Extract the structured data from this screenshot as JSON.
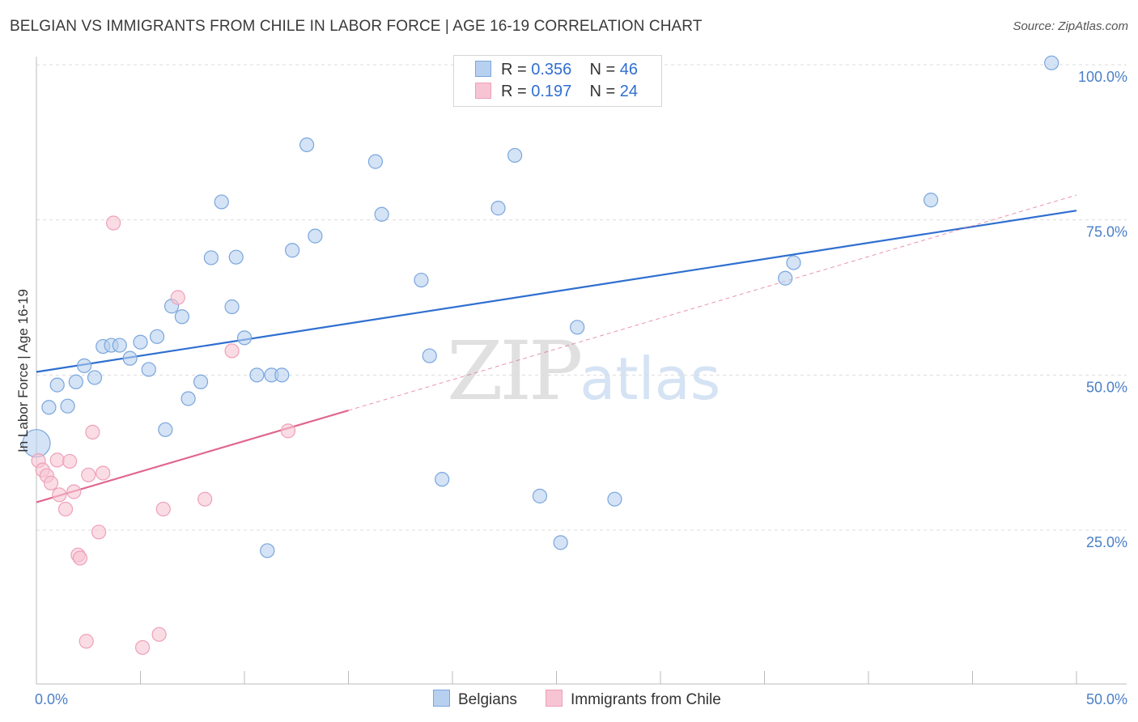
{
  "title": "BELGIAN VS IMMIGRANTS FROM CHILE IN LABOR FORCE | AGE 16-19 CORRELATION CHART",
  "source": "Source: ZipAtlas.com",
  "legend": {
    "rows": [
      {
        "r_label": "R =",
        "r_value": "0.356",
        "n_label": "N =",
        "n_value": "46"
      },
      {
        "r_label": "R =",
        "r_value": " 0.197",
        "n_label": "N =",
        "n_value": "24"
      }
    ]
  },
  "bottom_legend": {
    "series1": "Belgians",
    "series2": "Immigrants from Chile"
  },
  "watermark": {
    "zip": "ZIP",
    "atlas": "atlas"
  },
  "colors": {
    "blue_fill": "#b7d0ef",
    "blue_stroke": "#7aa6dd",
    "blue_line": "#2f6fd0",
    "pink_fill": "#f7c4d3",
    "pink_stroke": "#eea0b8",
    "pink_line": "#e0678f",
    "grid": "#dcdcdc",
    "axis_text": "#4a7fc9"
  },
  "chart_data": {
    "type": "scatter",
    "title": "BELGIAN VS IMMIGRANTS FROM CHILE IN LABOR FORCE | AGE 16-19 CORRELATION CHART",
    "xlabel": "",
    "ylabel": "In Labor Force | Age 16-19",
    "xlim": [
      0,
      50
    ],
    "ylim": [
      0,
      102
    ],
    "x_tick_labels": [
      {
        "value": 0,
        "label": "0.0%"
      },
      {
        "value": 50,
        "label": "50.0%"
      }
    ],
    "y_tick_labels": [
      {
        "value": 25,
        "label": "25.0%"
      },
      {
        "value": 50,
        "label": "50.0%"
      },
      {
        "value": 75,
        "label": "75.0%"
      },
      {
        "value": 100,
        "label": "100.0%"
      }
    ],
    "series": [
      {
        "name": "Belgians",
        "color": "#b7d0ef",
        "points": [
          [
            0.0,
            39.0,
            "big"
          ],
          [
            0.6,
            44.8
          ],
          [
            1.0,
            48.4
          ],
          [
            1.5,
            45.0
          ],
          [
            1.9,
            48.9
          ],
          [
            2.3,
            51.5
          ],
          [
            2.8,
            49.6
          ],
          [
            3.2,
            54.6
          ],
          [
            3.6,
            54.8
          ],
          [
            4.0,
            54.8
          ],
          [
            4.5,
            52.7
          ],
          [
            5.0,
            55.3
          ],
          [
            5.4,
            50.9
          ],
          [
            5.8,
            56.2
          ],
          [
            6.2,
            41.2
          ],
          [
            6.5,
            61.1
          ],
          [
            7.0,
            59.4
          ],
          [
            7.3,
            46.2
          ],
          [
            7.9,
            48.9
          ],
          [
            8.4,
            68.9
          ],
          [
            8.9,
            77.9
          ],
          [
            9.4,
            61.0
          ],
          [
            9.6,
            69.0
          ],
          [
            10.0,
            56.0
          ],
          [
            10.6,
            50.0
          ],
          [
            11.1,
            21.7
          ],
          [
            11.3,
            50.0
          ],
          [
            11.8,
            50.0
          ],
          [
            12.3,
            70.1
          ],
          [
            13.0,
            87.1
          ],
          [
            13.4,
            72.4
          ],
          [
            16.3,
            84.4
          ],
          [
            16.6,
            75.9
          ],
          [
            18.5,
            65.3
          ],
          [
            18.9,
            53.1
          ],
          [
            19.5,
            33.2
          ],
          [
            22.2,
            76.9
          ],
          [
            23.0,
            85.4
          ],
          [
            24.2,
            30.5
          ],
          [
            25.2,
            23.0
          ],
          [
            26.0,
            57.7
          ],
          [
            27.8,
            30.0
          ],
          [
            36.0,
            65.6
          ],
          [
            36.4,
            68.1
          ],
          [
            43.0,
            78.2
          ],
          [
            48.8,
            100.3
          ]
        ]
      },
      {
        "name": "Immigrants from Chile",
        "color": "#f7c4d3",
        "points": [
          [
            0.1,
            36.2
          ],
          [
            0.3,
            34.7
          ],
          [
            0.5,
            33.8
          ],
          [
            0.7,
            32.6
          ],
          [
            1.0,
            36.3
          ],
          [
            1.1,
            30.7
          ],
          [
            1.4,
            28.4
          ],
          [
            1.6,
            36.1
          ],
          [
            1.8,
            31.2
          ],
          [
            2.0,
            21.0
          ],
          [
            2.1,
            20.5
          ],
          [
            2.4,
            7.1
          ],
          [
            2.5,
            33.9
          ],
          [
            2.7,
            40.8
          ],
          [
            3.0,
            24.7
          ],
          [
            3.2,
            34.2
          ],
          [
            3.7,
            74.5
          ],
          [
            5.1,
            6.1
          ],
          [
            5.9,
            8.2
          ],
          [
            6.1,
            28.4
          ],
          [
            6.8,
            62.5
          ],
          [
            8.1,
            30.0
          ],
          [
            9.4,
            53.9
          ],
          [
            12.1,
            41.0
          ]
        ]
      }
    ],
    "trend_lines": [
      {
        "series": "Belgians",
        "x": [
          0,
          50
        ],
        "y": [
          50.5,
          76.5
        ],
        "style": "solid"
      },
      {
        "series": "Immigrants from Chile",
        "x": [
          0,
          15
        ],
        "y": [
          29.5,
          44.3
        ],
        "style": "solid"
      },
      {
        "series": "Immigrants from Chile",
        "x": [
          15,
          50
        ],
        "y": [
          44.3,
          79.0
        ],
        "style": "dashed"
      }
    ]
  }
}
